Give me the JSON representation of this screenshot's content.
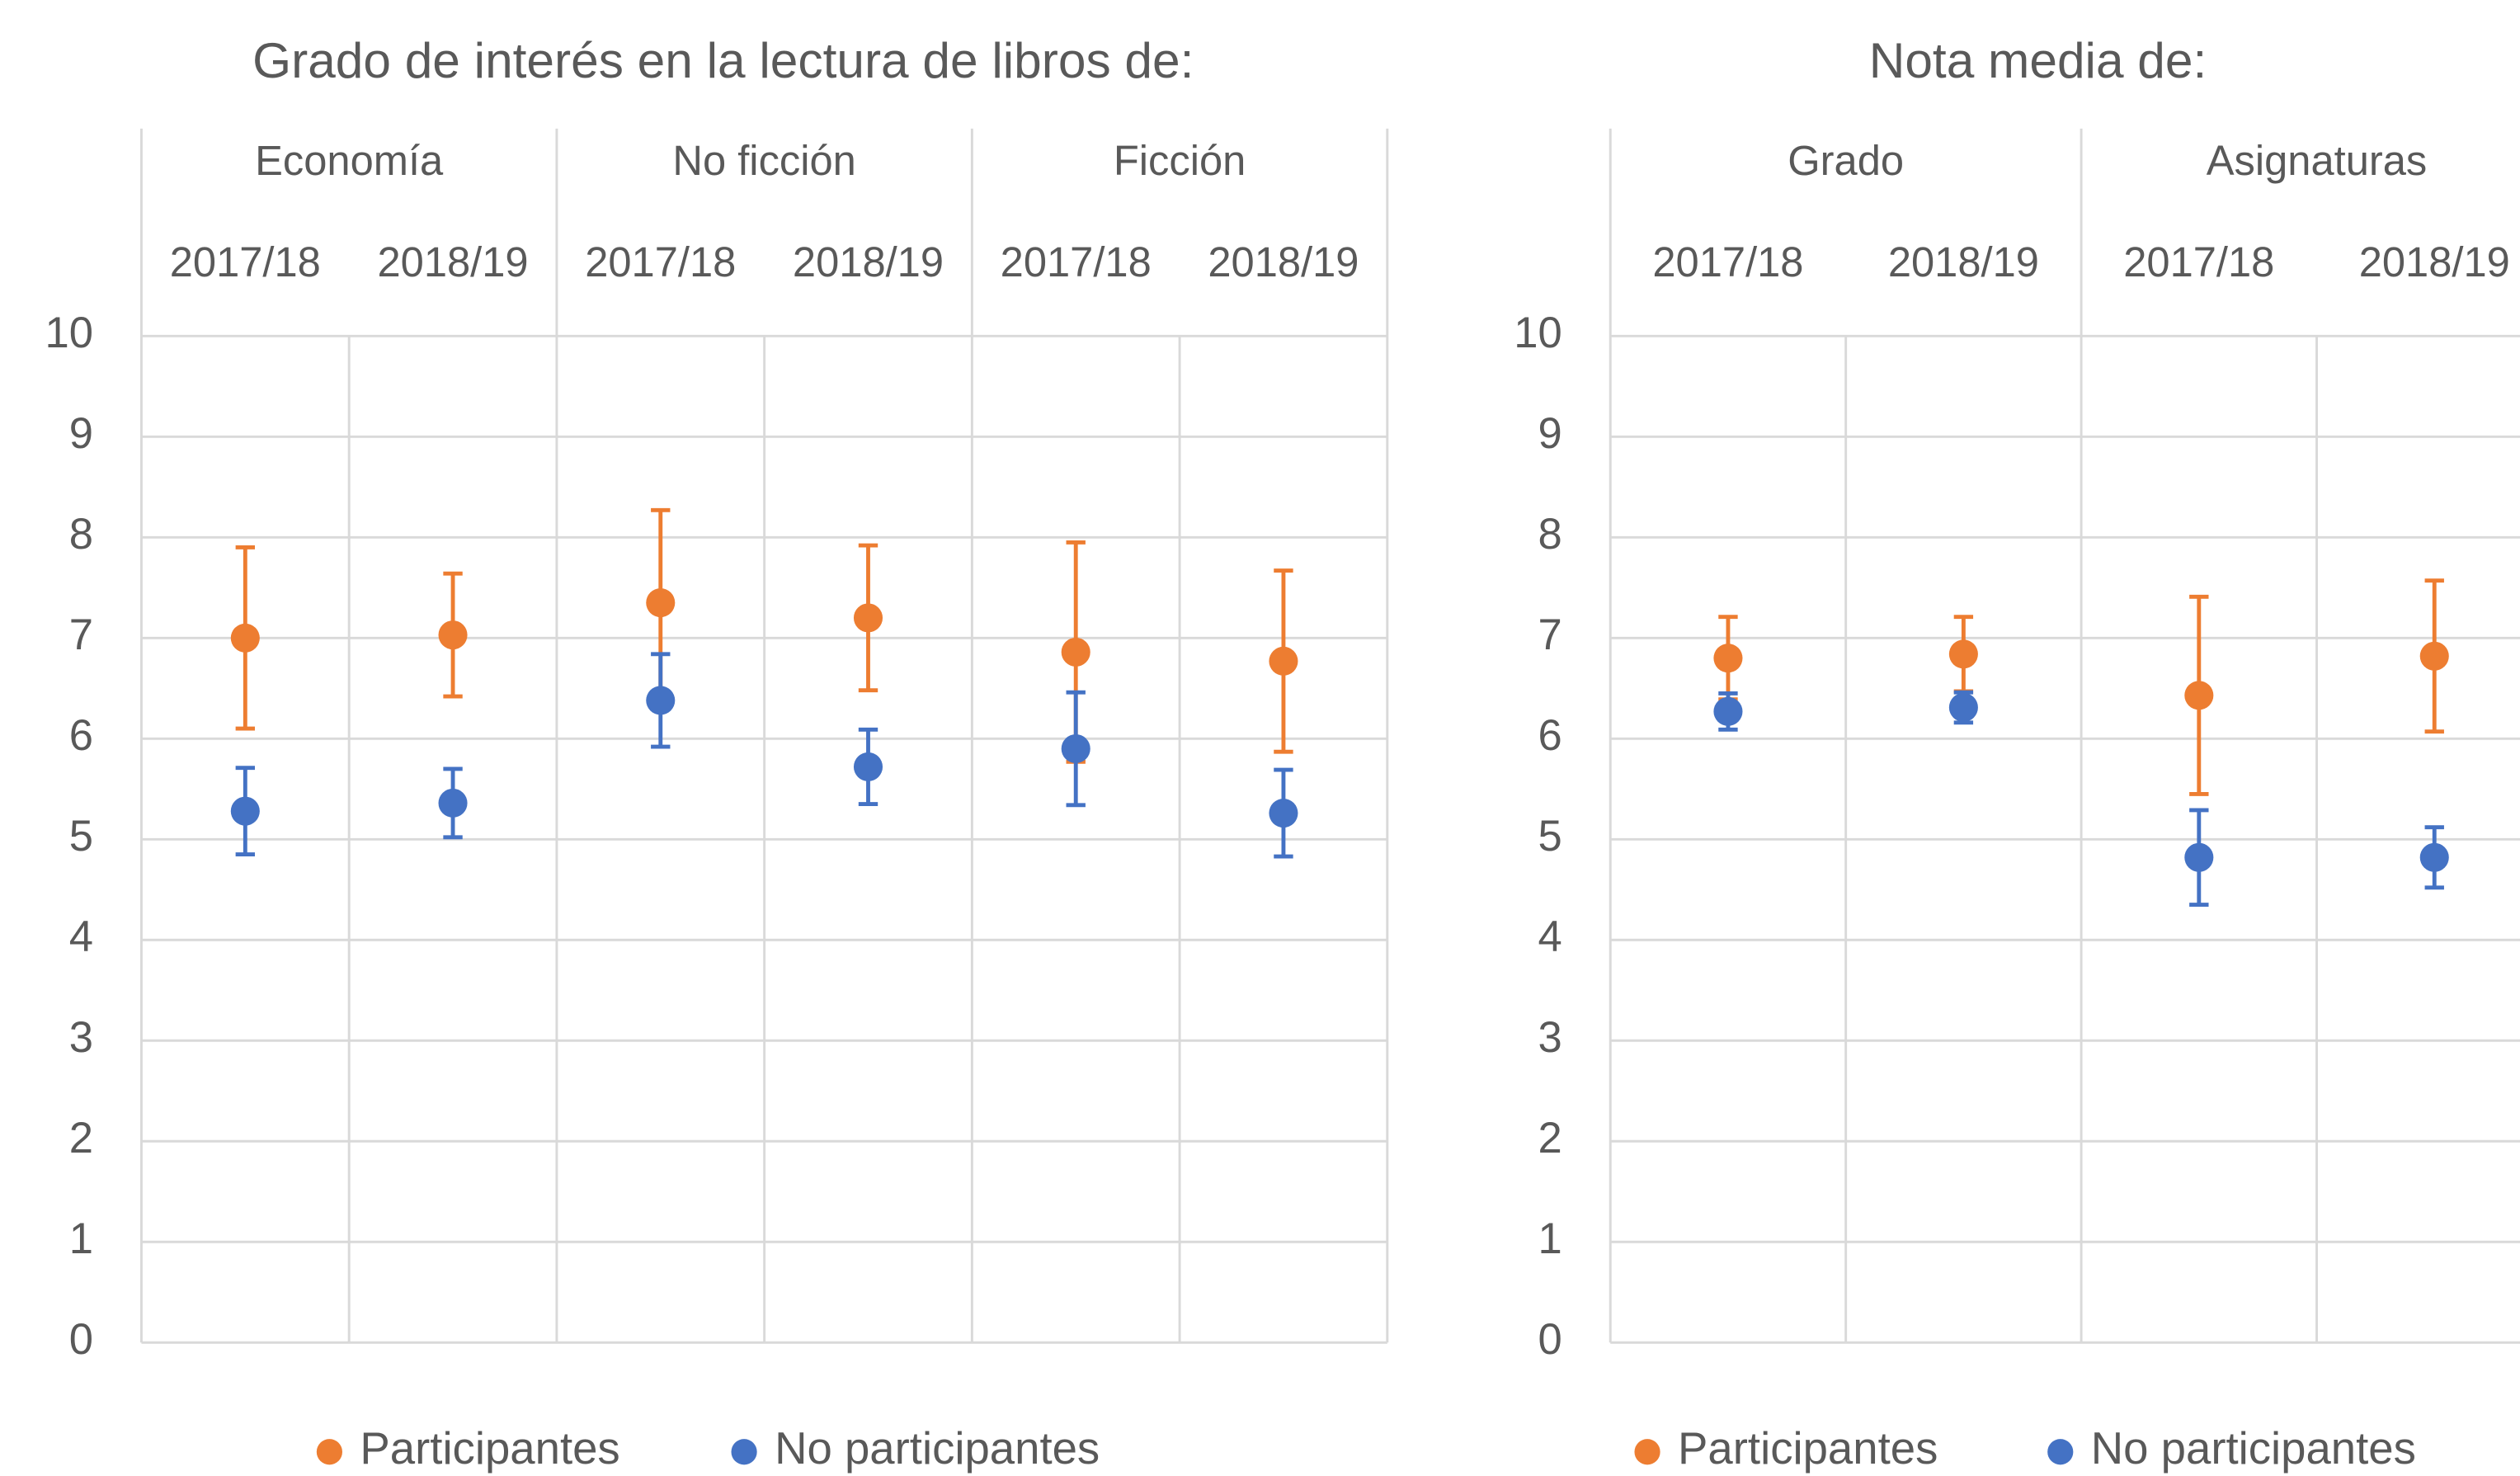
{
  "chart_data": [
    {
      "type": "scatter",
      "title": "Grado de interés en la lectura de libros de:",
      "groups": [
        "Economía",
        "No ficción",
        "Ficción"
      ],
      "categories": [
        "2017/18",
        "2018/19",
        "2017/18",
        "2018/19",
        "2017/18",
        "2018/19"
      ],
      "series": [
        {
          "name": "Participantes",
          "color": "#ed7d31",
          "values": [
            7.0,
            7.03,
            7.35,
            7.2,
            6.86,
            6.77
          ],
          "errors": [
            0.9,
            0.61,
            0.92,
            0.72,
            1.09,
            0.9
          ]
        },
        {
          "name": "No participantes",
          "color": "#4472c4",
          "values": [
            5.28,
            5.36,
            6.38,
            5.72,
            5.9,
            5.26
          ],
          "errors": [
            0.43,
            0.34,
            0.46,
            0.37,
            0.56,
            0.43
          ]
        }
      ],
      "ylim": [
        0,
        10
      ],
      "yticks": [
        0,
        1,
        2,
        3,
        4,
        5,
        6,
        7,
        8,
        9,
        10
      ],
      "grid": true,
      "legend": "bottom"
    },
    {
      "type": "scatter",
      "title": "Nota media de:",
      "groups": [
        "Grado",
        "Asignaturas"
      ],
      "categories": [
        "2017/18",
        "2018/19",
        "2017/18",
        "2018/19"
      ],
      "series": [
        {
          "name": "Participantes",
          "color": "#ed7d31",
          "values": [
            6.8,
            6.84,
            6.43,
            6.82
          ],
          "errors": [
            0.41,
            0.37,
            0.98,
            0.75
          ]
        },
        {
          "name": "No participantes",
          "color": "#4472c4",
          "values": [
            6.27,
            6.31,
            4.82,
            4.82
          ],
          "errors": [
            0.18,
            0.15,
            0.47,
            0.3
          ]
        }
      ],
      "ylim": [
        0,
        10
      ],
      "yticks": [
        0,
        1,
        2,
        3,
        4,
        5,
        6,
        7,
        8,
        9,
        10
      ],
      "grid": true,
      "legend": "bottom"
    }
  ]
}
